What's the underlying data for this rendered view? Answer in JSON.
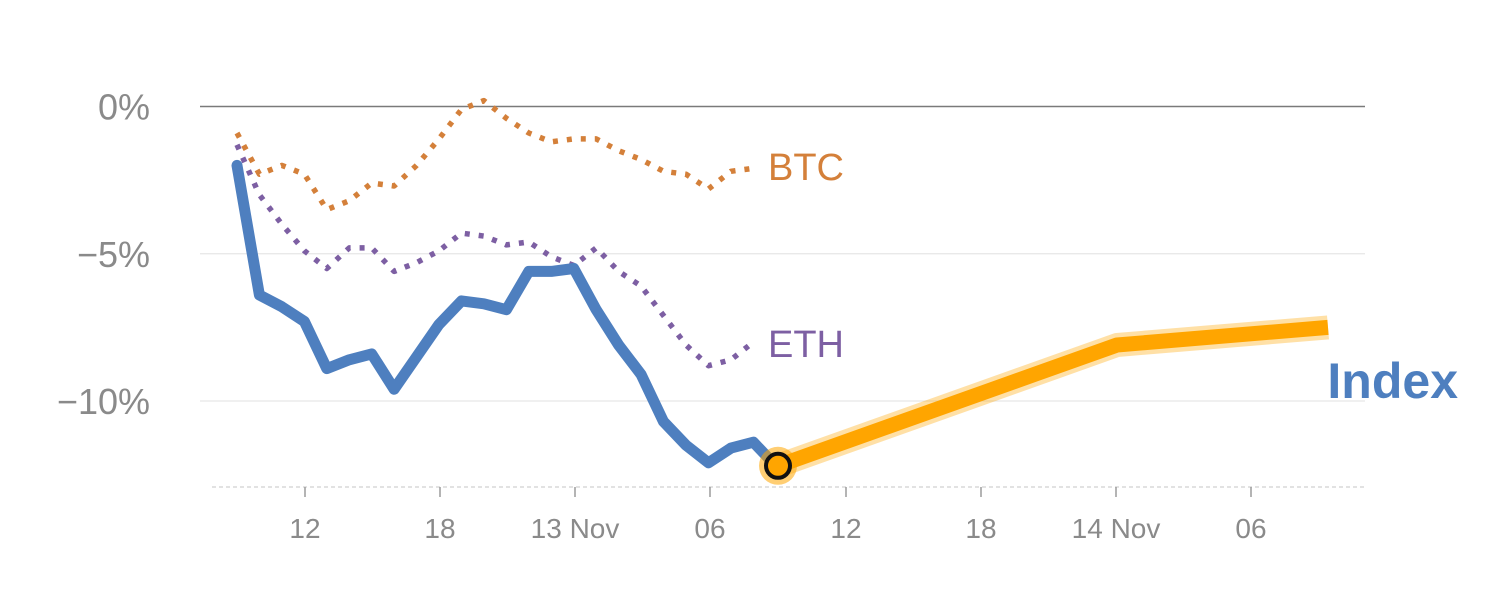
{
  "chart_data": {
    "type": "line",
    "title": "",
    "xlabel": "",
    "ylabel": "",
    "ylim": [
      -12.9,
      0.9
    ],
    "y_ticks": [
      {
        "value": 0,
        "label": "0%"
      },
      {
        "value": -5,
        "label": "−5%"
      },
      {
        "value": -10,
        "label": "−10%"
      }
    ],
    "x_ticks": [
      "12",
      "18",
      "13 Nov",
      "06",
      "12",
      "18",
      "14 Nov",
      "06"
    ],
    "grid": true,
    "series": [
      {
        "name": "BTC",
        "style": "dotted",
        "color": "#d4803a",
        "values": [
          -0.9,
          -2.3,
          -2.0,
          -2.3,
          -3.5,
          -3.2,
          -2.6,
          -2.7,
          -2.0,
          -1.1,
          -0.1,
          0.2,
          -0.4,
          -0.9,
          -1.2,
          -1.1,
          -1.1,
          -1.5,
          -1.8,
          -2.2,
          -2.3,
          -2.8,
          -2.2,
          -2.1
        ]
      },
      {
        "name": "ETH",
        "style": "dotted",
        "color": "#7d5fa3",
        "values": [
          -1.3,
          -3.0,
          -4.0,
          -4.9,
          -5.5,
          -4.8,
          -4.8,
          -5.6,
          -5.3,
          -4.9,
          -4.3,
          -4.4,
          -4.7,
          -4.6,
          -5.1,
          -5.4,
          -4.8,
          -5.6,
          -6.1,
          -7.1,
          -8.1,
          -8.8,
          -8.6,
          -8.0
        ]
      },
      {
        "name": "Index",
        "style": "solid",
        "color": "#4e7fbf",
        "values": [
          -2.0,
          -6.4,
          -6.8,
          -7.3,
          -8.9,
          -8.6,
          -8.4,
          -9.6,
          -8.5,
          -7.4,
          -6.6,
          -6.7,
          -6.9,
          -5.6,
          -5.6,
          -5.5,
          -6.9,
          -8.1,
          -9.1,
          -10.7,
          -11.5,
          -12.1,
          -11.6,
          -11.4,
          -12.2
        ],
        "projection_color": "#ffa500",
        "projection": [
          -12.2,
          -8.1,
          -7.5
        ]
      }
    ]
  }
}
